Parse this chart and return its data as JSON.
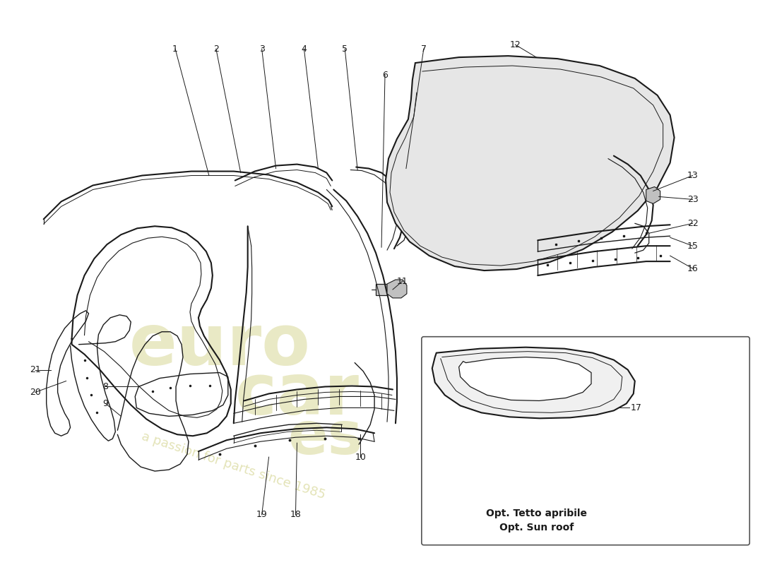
{
  "bg": "#ffffff",
  "lc": "#1a1a1a",
  "figsize": [
    11.0,
    8.0
  ],
  "dpi": 100,
  "inset_label1": "Opt. Tetto apribile",
  "inset_label2": "Opt. Sun roof",
  "wm1": "euro",
  "wm2": "car",
  "wm3": "es",
  "wm4": "a passion for parts since 1985",
  "wm_color": "#c8c870",
  "wm_color2": "#d0d090"
}
